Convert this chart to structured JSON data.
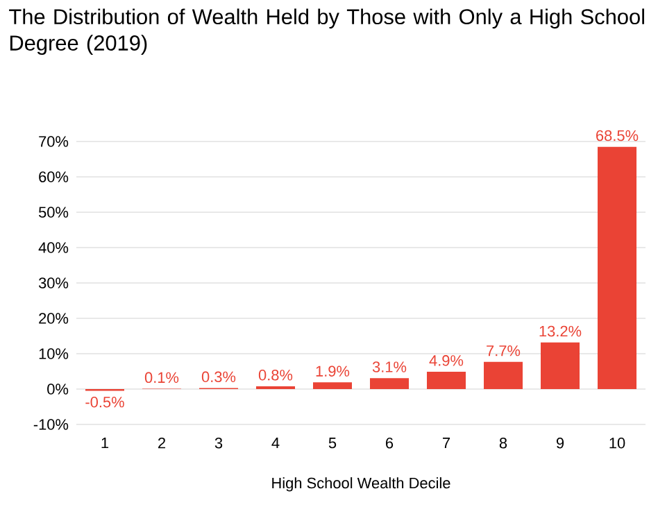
{
  "chart_data": {
    "type": "bar",
    "title": "The Distribution of Wealth Held by Those with Only a High School Degree (2019)",
    "xlabel": "High School Wealth Decile",
    "categories": [
      "1",
      "2",
      "3",
      "4",
      "5",
      "6",
      "7",
      "8",
      "9",
      "10"
    ],
    "values": [
      -0.5,
      0.1,
      0.3,
      0.8,
      1.9,
      3.1,
      4.9,
      7.7,
      13.2,
      68.5
    ],
    "value_labels": [
      "-0.5%",
      "0.1%",
      "0.3%",
      "0.8%",
      "1.9%",
      "3.1%",
      "4.9%",
      "7.7%",
      "13.2%",
      "68.5%"
    ],
    "color": "#ea4335",
    "ylim": [
      -10,
      70
    ],
    "yticks": [
      {
        "value": -10,
        "label": "-10%"
      },
      {
        "value": 0,
        "label": "0%"
      },
      {
        "value": 10,
        "label": "10%"
      },
      {
        "value": 20,
        "label": "20%"
      },
      {
        "value": 30,
        "label": "30%"
      },
      {
        "value": 40,
        "label": "40%"
      },
      {
        "value": 50,
        "label": "50%"
      },
      {
        "value": 60,
        "label": "60%"
      },
      {
        "value": 70,
        "label": "70%"
      }
    ],
    "grid": "y"
  }
}
